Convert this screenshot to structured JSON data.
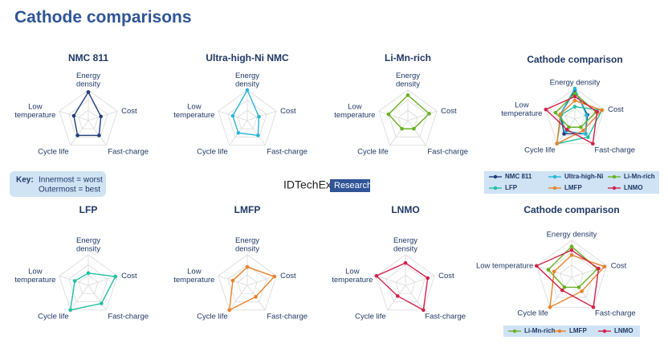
{
  "title": "Cathode comparisons",
  "key": {
    "label": "Key:",
    "lines": [
      "Innermost = worst",
      "Outermost = best"
    ]
  },
  "logo": {
    "brand": "IDTechEx",
    "tag": "Research"
  },
  "chart_data": [
    {
      "type": "radar",
      "title": "NMC 811",
      "axes": [
        [
          "Energy",
          "density"
        ],
        [
          "Cost"
        ],
        [
          "Fast-charge"
        ],
        [
          "Cycle life"
        ],
        [
          "Low",
          "temperature"
        ]
      ],
      "rlim": [
        0,
        3
      ],
      "rticks": [
        1,
        2,
        3
      ],
      "values": [
        2.8,
        1.3,
        1.8,
        1.8,
        1.5
      ],
      "color": "#1f3d7a"
    },
    {
      "type": "radar",
      "title": "Ultra-high-Ni NMC",
      "axes": [
        [
          "Energy",
          "density"
        ],
        [
          "Cost"
        ],
        [
          "Fast-charge"
        ],
        [
          "Cycle life"
        ],
        [
          "Low",
          "temperature"
        ]
      ],
      "rlim": [
        0,
        3
      ],
      "rticks": [
        1,
        2,
        3
      ],
      "values": [
        3,
        1.2,
        1.8,
        1.5,
        1.5
      ],
      "color": "#29b6d6"
    },
    {
      "type": "radar",
      "title": "Li-Mn-rich",
      "axes": [
        [
          "Energy",
          "density"
        ],
        [
          "Cost"
        ],
        [
          "Fast-charge"
        ],
        [
          "Cycle life"
        ],
        [
          "Low",
          "temperature"
        ]
      ],
      "rlim": [
        0,
        3
      ],
      "rticks": [
        1,
        2,
        3
      ],
      "values": [
        2.5,
        2.2,
        1,
        1,
        2
      ],
      "color": "#6ab023"
    },
    {
      "type": "radar",
      "title": "Cathode comparison",
      "axes": [
        [
          "Energy density"
        ],
        [
          "Cost"
        ],
        [
          "Fast-charge"
        ],
        [
          "Cycle life"
        ],
        [
          "Low",
          "temperature"
        ]
      ],
      "rlim": [
        0,
        3
      ],
      "rticks": [
        1,
        2,
        3
      ],
      "legend": "bottom",
      "series": [
        {
          "name": "NMC 811",
          "color": "#1f3d7a",
          "values": [
            2.8,
            1.3,
            1.8,
            1.8,
            1.5
          ]
        },
        {
          "name": "Ultra-high-Ni",
          "color": "#29b6d6",
          "values": [
            3,
            1.2,
            1.8,
            1.5,
            1.5
          ]
        },
        {
          "name": "Li-Mn-rich",
          "color": "#6ab023",
          "values": [
            2.5,
            2.2,
            1,
            1,
            2
          ]
        },
        {
          "name": "LFP",
          "color": "#1fbfa0",
          "values": [
            1.2,
            2.8,
            2.2,
            3,
            1.4
          ]
        },
        {
          "name": "LMFP",
          "color": "#e8822a",
          "values": [
            1.8,
            2.8,
            1.4,
            3,
            1.5
          ]
        },
        {
          "name": "LNMO",
          "color": "#d4204a",
          "values": [
            2.2,
            2.3,
            3,
            1.3,
            3
          ]
        }
      ]
    },
    {
      "type": "radar",
      "title": "LFP",
      "axes": [
        [
          "Energy",
          "density"
        ],
        [
          "Cost"
        ],
        [
          "Fast-charge"
        ],
        [
          "Cycle life"
        ],
        [
          "Low",
          "temperature"
        ]
      ],
      "rlim": [
        0,
        3
      ],
      "rticks": [
        1,
        2,
        3
      ],
      "values": [
        1.2,
        2.8,
        2.2,
        3,
        1.4
      ],
      "color": "#1fbfa0"
    },
    {
      "type": "radar",
      "title": "LMFP",
      "axes": [
        [
          "Energy",
          "density"
        ],
        [
          "Cost"
        ],
        [
          "Fast-charge"
        ],
        [
          "Cycle life"
        ],
        [
          "Low",
          "temperature"
        ]
      ],
      "rlim": [
        0,
        3
      ],
      "rticks": [
        1,
        2,
        3
      ],
      "values": [
        1.8,
        2.8,
        1.4,
        3,
        1.5
      ],
      "color": "#e8822a"
    },
    {
      "type": "radar",
      "title": "LNMO",
      "axes": [
        [
          "Energy",
          "density"
        ],
        [
          "Cost"
        ],
        [
          "Fast-charge"
        ],
        [
          "Cycle life"
        ],
        [
          "Low",
          "temperature"
        ]
      ],
      "rlim": [
        0,
        3
      ],
      "rticks": [
        1,
        2,
        3
      ],
      "values": [
        2.2,
        2.3,
        3,
        1.3,
        3
      ],
      "color": "#d4204a"
    },
    {
      "type": "radar",
      "title": "Cathode comparison",
      "axes": [
        [
          "Energy density"
        ],
        [
          "Cost"
        ],
        [
          "Fast-charge"
        ],
        [
          "Cycle life"
        ],
        [
          "Low temperature"
        ]
      ],
      "rlim": [
        0,
        3
      ],
      "rticks": [
        1,
        2,
        3
      ],
      "legend": "bottom",
      "series": [
        {
          "name": "Li-Mn-rich",
          "color": "#6ab023",
          "values": [
            2.5,
            2.2,
            1,
            1,
            2
          ]
        },
        {
          "name": "LMFP",
          "color": "#e8822a",
          "values": [
            1.8,
            2.8,
            1.4,
            3,
            1.5
          ]
        },
        {
          "name": "LNMO",
          "color": "#d4204a",
          "values": [
            2.2,
            2.3,
            3,
            1.3,
            3
          ]
        }
      ]
    }
  ]
}
